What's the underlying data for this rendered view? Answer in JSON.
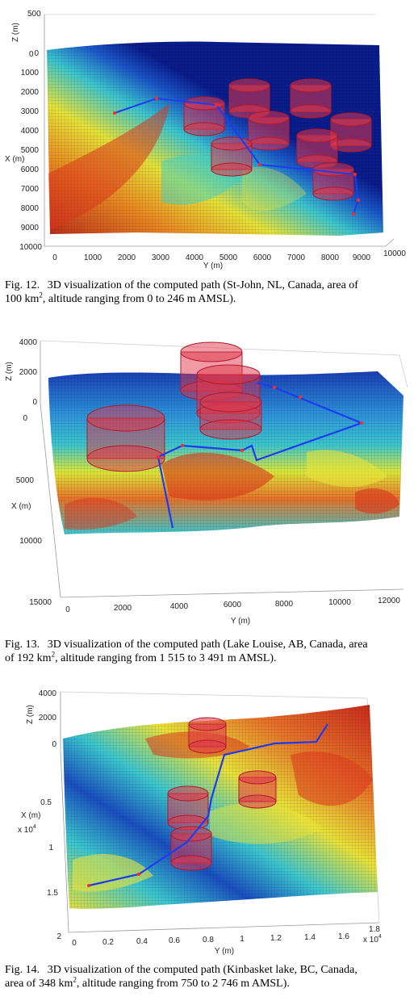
{
  "colors": {
    "terrain_low": "#0a1c8c",
    "terrain_mid": "#2db9d8",
    "terrain_high": "#e9e23a",
    "terrain_peak": "#d4261c",
    "path": "#1d3cf0",
    "obstacle": "#e0364a"
  },
  "figures": [
    {
      "label": "Fig. 12.",
      "caption_a": "3D visualization of the computed path (St-John, NL, Canada, area of",
      "caption_b": "100 km",
      "caption_sup": "2",
      "caption_c": ", altitude ranging from 0 to 246 m AMSL).",
      "axes": {
        "z_label": "Z (m)",
        "x_label": "X (m)",
        "y_label": "Y (m)",
        "z_ticks": [
          "500",
          "0"
        ],
        "x_ticks": [
          "0",
          "1000",
          "2000",
          "3000",
          "4000",
          "5000",
          "6000",
          "7000",
          "8000",
          "9000",
          "10000"
        ],
        "y_ticks": [
          "0",
          "1000",
          "2000",
          "3000",
          "4000",
          "5000",
          "6000",
          "7000",
          "8000",
          "9000",
          "10000"
        ]
      }
    },
    {
      "label": "Fig. 13.",
      "caption_a": "3D visualization of the computed path (Lake Louise, AB, Canada, area",
      "caption_b": "of 192 km",
      "caption_sup": "2",
      "caption_c": ", altitude ranging from 1 515 to 3 491 m AMSL).",
      "axes": {
        "z_label": "Z (m)",
        "x_label": "X (m)",
        "y_label": "Y (m)",
        "z_ticks": [
          "4000",
          "2000",
          "0"
        ],
        "x_ticks": [
          "0",
          "5000",
          "10000",
          "15000"
        ],
        "y_ticks": [
          "0",
          "2000",
          "4000",
          "6000",
          "8000",
          "10000",
          "12000"
        ]
      }
    },
    {
      "label": "Fig. 14.",
      "caption_a": "3D visualization of the computed path (Kinbasket lake, BC, Canada,",
      "caption_b": "area of 348 km",
      "caption_sup": "2",
      "caption_c": ", altitude ranging from 750 to 2 746 m AMSL).",
      "axes": {
        "z_label": "Z (m)",
        "x_label": "X (m)",
        "x_mult": "x 10",
        "x_mult_exp": "4",
        "y_label": "Y (m)",
        "y_mult": "x 10",
        "y_mult_exp": "4",
        "z_ticks": [
          "4000",
          "2000",
          "0"
        ],
        "x_ticks": [
          "0.5",
          "1",
          "1.5",
          "2"
        ],
        "y_ticks": [
          "0",
          "0.2",
          "0.4",
          "0.6",
          "0.8",
          "1",
          "1.2",
          "1.4",
          "1.6",
          "1.8"
        ]
      }
    }
  ]
}
